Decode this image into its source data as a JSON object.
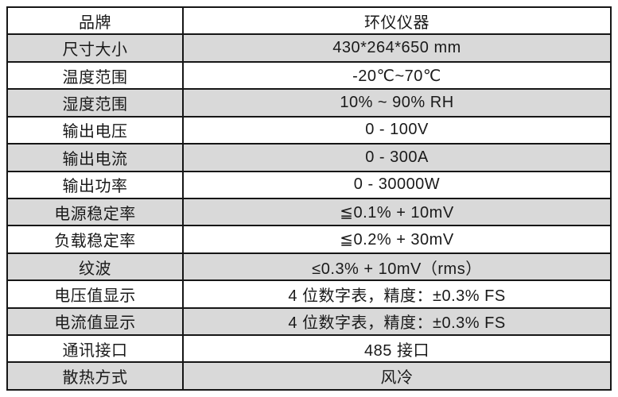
{
  "colors": {
    "page_background": "#ffffff",
    "shaded_row": "#d9d9d9",
    "border": "#161616",
    "text": "#1a1a1a"
  },
  "spec_table": {
    "rows": [
      {
        "label": "品牌",
        "value": "环仪仪器"
      },
      {
        "label": "尺寸大小",
        "value": "430*264*650 mm"
      },
      {
        "label": "温度范围",
        "value": "-20℃~70℃"
      },
      {
        "label": "湿度范围",
        "value": "10% ~ 90% RH"
      },
      {
        "label": "输出电压",
        "value": "0 - 100V"
      },
      {
        "label": "输出电流",
        "value": "0 - 300A"
      },
      {
        "label": "输出功率",
        "value": "0 - 30000W"
      },
      {
        "label": "电源稳定率",
        "value": "≦0.1% + 10mV"
      },
      {
        "label": "负载稳定率",
        "value": "≦0.2% + 30mV"
      },
      {
        "label": "纹波",
        "value": "≤0.3% + 10mV（rms）"
      },
      {
        "label": "电压值显示",
        "value": "4 位数字表，精度：±0.3% FS"
      },
      {
        "label": "电流值显示",
        "value": "4 位数字表，精度：±0.3% FS"
      },
      {
        "label": "通讯接口",
        "value": "485 接口"
      },
      {
        "label": "散热方式",
        "value": "风冷"
      }
    ]
  }
}
